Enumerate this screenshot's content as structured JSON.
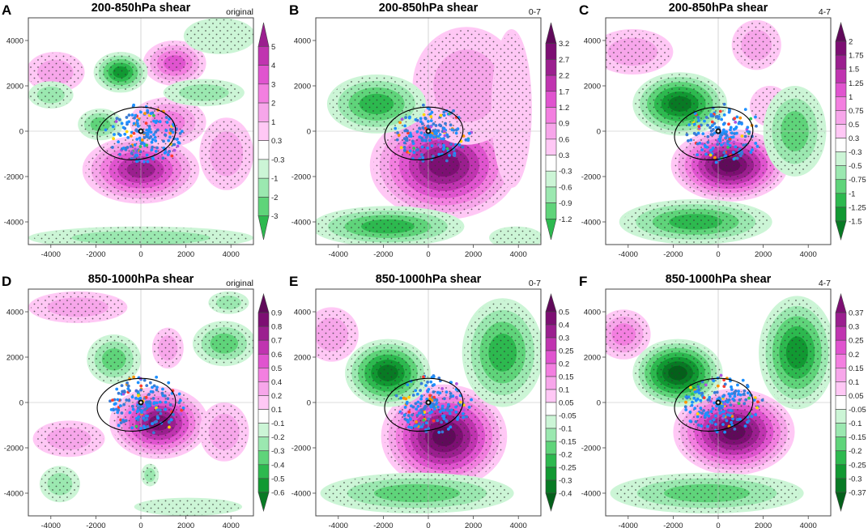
{
  "figure": {
    "colors": {
      "magenta": [
        "#ffc8f5",
        "#f7a6ea",
        "#f37fe0",
        "#e054cf",
        "#c034b0",
        "#9b1f8f",
        "#7d0f73",
        "#600a5a"
      ],
      "green": [
        "#ccf5d6",
        "#9be8b0",
        "#5fd47a",
        "#2db94f",
        "#119932",
        "#087a24",
        "#04601a",
        "#024010"
      ],
      "ellipse": "#000000",
      "scatter": [
        "#1e90ff",
        "#3a7bd5",
        "#ff3b30",
        "#ff9500",
        "#ffd60a",
        "#34c759",
        "#af52de"
      ]
    },
    "panels": [
      {
        "id": "A",
        "letter": "A",
        "title": "200-850hPa shear",
        "tag": "original",
        "chart_data": {
          "type": "heatmap",
          "xlim": [
            -5000,
            5000
          ],
          "ylim": [
            -5000,
            5000
          ],
          "xticks": [
            "-4000",
            "-2000",
            "0",
            "2000",
            "4000"
          ],
          "yticks": [
            "4000",
            "2000",
            "0",
            "-2000",
            "-4000"
          ],
          "colorbar": [
            "5",
            "4",
            "3",
            "2",
            "1",
            "0.3",
            "-0.3",
            "-1",
            "-2",
            "-3"
          ],
          "blobs": [
            {
              "cx": 0,
              "cy": -1700,
              "rx": 2600,
              "ry": 1500,
              "sign": 1,
              "levels": 6
            },
            {
              "cx": 1500,
              "cy": 3000,
              "rx": 1400,
              "ry": 1000,
              "sign": 1,
              "levels": 4
            },
            {
              "cx": -3800,
              "cy": 2600,
              "rx": 1300,
              "ry": 900,
              "sign": 1,
              "levels": 2
            },
            {
              "cx": 1200,
              "cy": 400,
              "rx": 1700,
              "ry": 1100,
              "sign": 1,
              "levels": 3
            },
            {
              "cx": 3800,
              "cy": -1000,
              "rx": 1200,
              "ry": 1600,
              "sign": 1,
              "levels": 2
            },
            {
              "cx": -900,
              "cy": 2600,
              "rx": 1200,
              "ry": 900,
              "sign": -1,
              "levels": 5
            },
            {
              "cx": -4000,
              "cy": 1600,
              "rx": 1000,
              "ry": 600,
              "sign": -1,
              "levels": 2
            },
            {
              "cx": -1800,
              "cy": 300,
              "rx": 1000,
              "ry": 700,
              "sign": -1,
              "levels": 3
            },
            {
              "cx": 3500,
              "cy": 4200,
              "rx": 1600,
              "ry": 800,
              "sign": -1,
              "levels": 1
            },
            {
              "cx": 2800,
              "cy": 1700,
              "rx": 1800,
              "ry": 600,
              "sign": -1,
              "levels": 2
            },
            {
              "cx": 0,
              "cy": -4700,
              "rx": 5000,
              "ry": 500,
              "sign": -1,
              "levels": 2
            }
          ]
        }
      },
      {
        "id": "B",
        "letter": "B",
        "title": "200-850hPa shear",
        "tag": "0-7",
        "chart_data": {
          "type": "heatmap",
          "xlim": [
            -5000,
            5000
          ],
          "ylim": [
            -5000,
            5000
          ],
          "xticks": [
            "-4000",
            "-2000",
            "0",
            "2000",
            "4000"
          ],
          "yticks": [
            "4000",
            "2000",
            "0",
            "-2000",
            "-4000"
          ],
          "colorbar": [
            "3.2",
            "2.7",
            "2.2",
            "1.7",
            "1.2",
            "0.9",
            "0.6",
            "0.3",
            "-0.3",
            "-0.6",
            "-0.9",
            "-1.2"
          ],
          "blobs": [
            {
              "cx": 700,
              "cy": -1500,
              "rx": 3300,
              "ry": 2400,
              "sign": 1,
              "levels": 7
            },
            {
              "cx": 1700,
              "cy": 2000,
              "rx": 2400,
              "ry": 2600,
              "sign": 1,
              "levels": 2
            },
            {
              "cx": 3700,
              "cy": 1000,
              "rx": 900,
              "ry": 3500,
              "sign": 1,
              "levels": 1
            },
            {
              "cx": -2300,
              "cy": 1200,
              "rx": 2200,
              "ry": 1300,
              "sign": -1,
              "levels": 4
            },
            {
              "cx": -1800,
              "cy": -4200,
              "rx": 3400,
              "ry": 900,
              "sign": -1,
              "levels": 4
            },
            {
              "cx": 3900,
              "cy": -4700,
              "rx": 1200,
              "ry": 500,
              "sign": -1,
              "levels": 1
            }
          ]
        }
      },
      {
        "id": "C",
        "letter": "C",
        "title": "200-850hPa shear",
        "tag": "4-7",
        "chart_data": {
          "type": "heatmap",
          "xlim": [
            -5000,
            5000
          ],
          "ylim": [
            -5000,
            5000
          ],
          "xticks": [
            "-4000",
            "-2000",
            "0",
            "2000",
            "4000"
          ],
          "yticks": [
            "4000",
            "2000",
            "0",
            "-2000",
            "-4000"
          ],
          "colorbar": [
            "2",
            "1.75",
            "1.5",
            "1.25",
            "1",
            "0.75",
            "0.5",
            "0.3",
            "-0.3",
            "-0.5",
            "-0.75",
            "-1",
            "-1.25",
            "-1.5"
          ],
          "blobs": [
            {
              "cx": 500,
              "cy": -1500,
              "rx": 2600,
              "ry": 1600,
              "sign": 1,
              "levels": 8
            },
            {
              "cx": -3800,
              "cy": 3500,
              "rx": 1800,
              "ry": 1000,
              "sign": 1,
              "levels": 2
            },
            {
              "cx": 1700,
              "cy": 3800,
              "rx": 1100,
              "ry": 1100,
              "sign": 1,
              "levels": 2
            },
            {
              "cx": 2300,
              "cy": 1100,
              "rx": 900,
              "ry": 900,
              "sign": 1,
              "levels": 1
            },
            {
              "cx": -1700,
              "cy": 1200,
              "rx": 2100,
              "ry": 1400,
              "sign": -1,
              "levels": 6
            },
            {
              "cx": 3400,
              "cy": 0,
              "rx": 1400,
              "ry": 2000,
              "sign": -1,
              "levels": 3
            },
            {
              "cx": -1000,
              "cy": -4000,
              "rx": 3400,
              "ry": 1000,
              "sign": -1,
              "levels": 4
            }
          ]
        }
      },
      {
        "id": "D",
        "letter": "D",
        "title": "850-1000hPa shear",
        "tag": "original",
        "chart_data": {
          "type": "heatmap",
          "xlim": [
            -5000,
            5000
          ],
          "ylim": [
            -5000,
            5000
          ],
          "xticks": [
            "-4000",
            "-2000",
            "0",
            "2000",
            "4000"
          ],
          "yticks": [
            "4000",
            "2000",
            "0",
            "-2000",
            "-4000"
          ],
          "colorbar": [
            "0.9",
            "0.8",
            "0.7",
            "0.6",
            "0.5",
            "0.4",
            "0.2",
            "0.1",
            "-0.1",
            "-0.2",
            "-0.3",
            "-0.4",
            "-0.5",
            "-0.6"
          ],
          "blobs": [
            {
              "cx": 800,
              "cy": -900,
              "rx": 2200,
              "ry": 1600,
              "sign": 1,
              "levels": 7
            },
            {
              "cx": -2800,
              "cy": 4200,
              "rx": 2200,
              "ry": 700,
              "sign": 1,
              "levels": 2
            },
            {
              "cx": -3200,
              "cy": -1600,
              "rx": 1600,
              "ry": 800,
              "sign": 1,
              "levels": 2
            },
            {
              "cx": 3700,
              "cy": -1300,
              "rx": 1100,
              "ry": 1300,
              "sign": 1,
              "levels": 2
            },
            {
              "cx": 1200,
              "cy": 2400,
              "rx": 700,
              "ry": 900,
              "sign": 1,
              "levels": 2
            },
            {
              "cx": -1200,
              "cy": 1900,
              "rx": 1200,
              "ry": 1100,
              "sign": -1,
              "levels": 3
            },
            {
              "cx": 3700,
              "cy": 2600,
              "rx": 1400,
              "ry": 1000,
              "sign": -1,
              "levels": 3
            },
            {
              "cx": 3900,
              "cy": 4400,
              "rx": 900,
              "ry": 500,
              "sign": -1,
              "levels": 2
            },
            {
              "cx": -3600,
              "cy": -3600,
              "rx": 900,
              "ry": 800,
              "sign": -1,
              "levels": 2
            },
            {
              "cx": 400,
              "cy": -3200,
              "rx": 400,
              "ry": 500,
              "sign": -1,
              "levels": 2
            },
            {
              "cx": 2100,
              "cy": -4600,
              "rx": 2400,
              "ry": 400,
              "sign": -1,
              "levels": 1
            }
          ]
        }
      },
      {
        "id": "E",
        "letter": "E",
        "title": "850-1000hPa shear",
        "tag": "0-7",
        "chart_data": {
          "type": "heatmap",
          "xlim": [
            -5000,
            5000
          ],
          "ylim": [
            -5000,
            5000
          ],
          "xticks": [
            "-4000",
            "-2000",
            "0",
            "2000",
            "4000"
          ],
          "yticks": [
            "4000",
            "2000",
            "0",
            "-2000",
            "-4000"
          ],
          "colorbar": [
            "0.5",
            "0.4",
            "0.3",
            "0.25",
            "0.2",
            "0.15",
            "0.1",
            "0.05",
            "-0.05",
            "-0.1",
            "-0.15",
            "-0.2",
            "-0.25",
            "-0.3",
            "-0.4"
          ],
          "blobs": [
            {
              "cx": 700,
              "cy": -1500,
              "rx": 2800,
              "ry": 2300,
              "sign": 1,
              "levels": 8
            },
            {
              "cx": -4300,
              "cy": 3000,
              "rx": 1200,
              "ry": 1200,
              "sign": 1,
              "levels": 2
            },
            {
              "cx": -1800,
              "cy": 1300,
              "rx": 1900,
              "ry": 1500,
              "sign": -1,
              "levels": 6
            },
            {
              "cx": 3300,
              "cy": 2200,
              "rx": 1800,
              "ry": 2400,
              "sign": -1,
              "levels": 4
            },
            {
              "cx": -500,
              "cy": -4000,
              "rx": 4300,
              "ry": 900,
              "sign": -1,
              "levels": 3
            }
          ]
        }
      },
      {
        "id": "F",
        "letter": "F",
        "title": "850-1000hPa shear",
        "tag": "4-7",
        "chart_data": {
          "type": "heatmap",
          "xlim": [
            -5000,
            5000
          ],
          "ylim": [
            -5000,
            5000
          ],
          "xticks": [
            "-4000",
            "-2000",
            "0",
            "2000",
            "4000"
          ],
          "yticks": [
            "4000",
            "2000",
            "0",
            "-2000",
            "-4000"
          ],
          "colorbar": [
            "0.37",
            "0.3",
            "0.25",
            "0.2",
            "0.15",
            "0.1",
            "0.05",
            "-0.05",
            "-0.1",
            "-0.15",
            "-0.2",
            "-0.25",
            "-0.3",
            "-0.37"
          ],
          "blobs": [
            {
              "cx": 700,
              "cy": -1300,
              "rx": 2700,
              "ry": 1900,
              "sign": 1,
              "levels": 8
            },
            {
              "cx": -4200,
              "cy": 3000,
              "rx": 1200,
              "ry": 1100,
              "sign": 1,
              "levels": 3
            },
            {
              "cx": -1800,
              "cy": 1300,
              "rx": 2000,
              "ry": 1500,
              "sign": -1,
              "levels": 7
            },
            {
              "cx": 3500,
              "cy": 2200,
              "rx": 1700,
              "ry": 2500,
              "sign": -1,
              "levels": 5
            },
            {
              "cx": -500,
              "cy": -4000,
              "rx": 4300,
              "ry": 900,
              "sign": -1,
              "levels": 3
            }
          ]
        }
      }
    ]
  }
}
